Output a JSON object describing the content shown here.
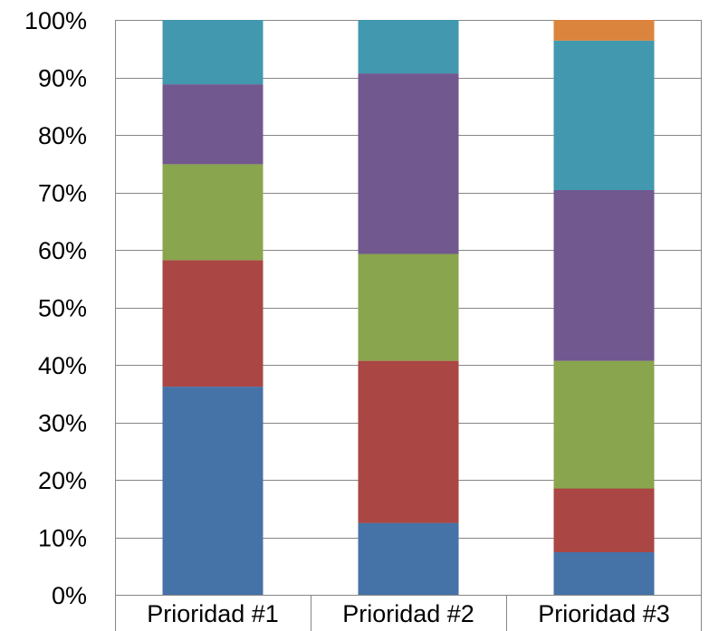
{
  "chart_data": {
    "type": "bar",
    "stacked": true,
    "percent_stacked": true,
    "categories": [
      "Prioridad #1",
      "Prioridad #2",
      "Prioridad #3"
    ],
    "series": [
      {
        "values": [
          36.2,
          12.5,
          7.4
        ]
      },
      {
        "values": [
          22.0,
          28.2,
          11.1
        ]
      },
      {
        "values": [
          16.7,
          18.6,
          22.2
        ]
      },
      {
        "values": [
          13.9,
          31.4,
          29.7
        ]
      },
      {
        "values": [
          11.2,
          9.3,
          26.0
        ]
      },
      {
        "values": [
          0,
          0,
          3.6
        ]
      }
    ],
    "yticks": [
      "0%",
      "10%",
      "20%",
      "30%",
      "40%",
      "50%",
      "60%",
      "70%",
      "80%",
      "90%",
      "100%"
    ],
    "ylim": [
      0,
      100
    ],
    "grid": true,
    "legend": "none",
    "colors": [
      "#4572A7",
      "#AA4643",
      "#89A54E",
      "#71588F",
      "#4198AF",
      "#DB843D"
    ]
  }
}
